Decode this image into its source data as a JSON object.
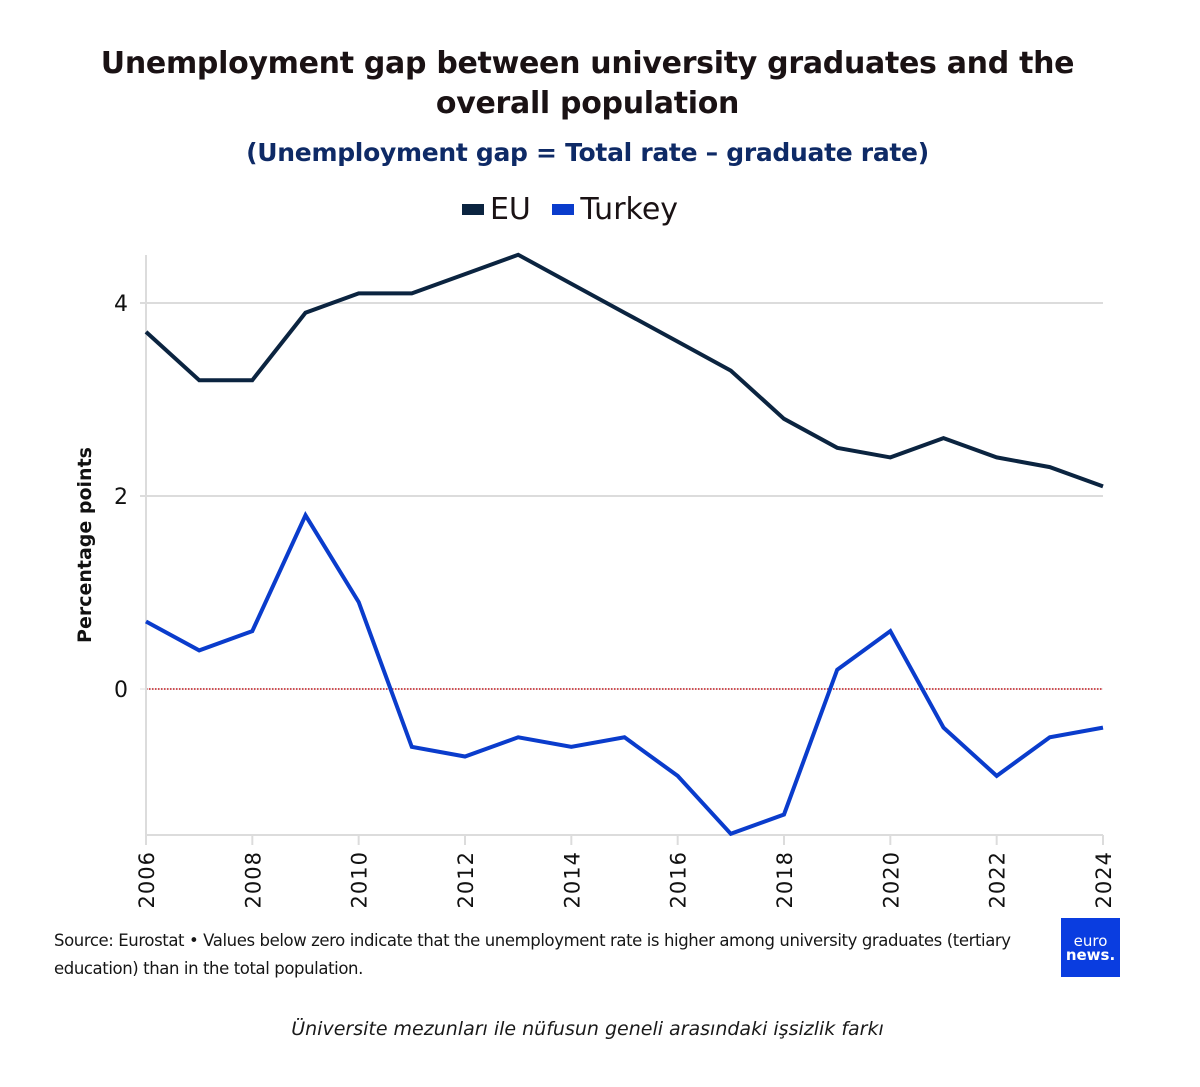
{
  "header": {
    "title_line1": "Unemployment gap between university graduates and the",
    "title_line2": "overall population",
    "subtitle": "(Unemployment gap = Total rate – graduate rate)"
  },
  "legend": [
    {
      "name": "EU",
      "color": "#0b2440"
    },
    {
      "name": "Turkey",
      "color": "#0a3ccc"
    }
  ],
  "footer": {
    "source": "Source: Eurostat • Values below zero indicate that the unemployment rate is higher among university graduates (tertiary education) than in the total population.",
    "logo_line1": "euro",
    "logo_line2": "news.",
    "caption": "Üniversite mezunları ile nüfusun geneli arasındaki işsizlik farkı"
  },
  "chart_data": {
    "type": "line",
    "title": "Unemployment gap between university graduates and the overall population",
    "subtitle": "(Unemployment gap = Total rate – graduate rate)",
    "xlabel": "",
    "ylabel": "Percentage points",
    "x": [
      2006,
      2007,
      2008,
      2009,
      2010,
      2011,
      2012,
      2013,
      2014,
      2015,
      2016,
      2017,
      2018,
      2019,
      2020,
      2021,
      2022,
      2023,
      2024
    ],
    "x_ticks": [
      "2006",
      "2008",
      "2010",
      "2012",
      "2014",
      "2016",
      "2018",
      "2020",
      "2022",
      "2024"
    ],
    "y_ticks": [
      "0",
      "2",
      "4"
    ],
    "ylim": [
      -1.5,
      4.5
    ],
    "grid": true,
    "legend_position": "top",
    "reference_line": {
      "y": 0,
      "style": "dotted",
      "color": "#c0141a"
    },
    "series": [
      {
        "name": "EU",
        "color": "#0b2440",
        "values": [
          3.7,
          3.2,
          3.2,
          3.9,
          4.1,
          4.1,
          4.3,
          4.5,
          4.2,
          3.9,
          3.6,
          3.3,
          2.8,
          2.5,
          2.4,
          2.6,
          2.4,
          2.3,
          2.1
        ]
      },
      {
        "name": "Turkey",
        "color": "#0a3ccc",
        "values": [
          0.7,
          0.4,
          0.6,
          1.8,
          0.9,
          -0.6,
          -0.7,
          -0.5,
          -0.6,
          -0.5,
          -0.9,
          -1.5,
          -1.3,
          0.2,
          0.6,
          -0.4,
          -0.9,
          -0.5,
          -0.4
        ]
      }
    ]
  }
}
